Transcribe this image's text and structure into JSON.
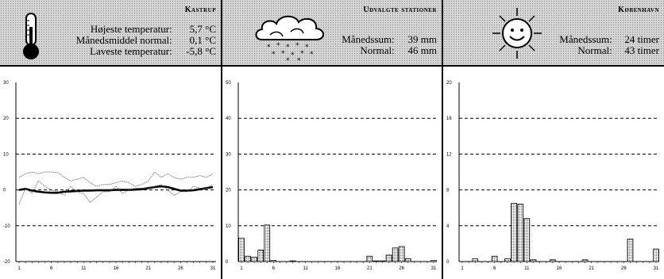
{
  "panels": {
    "temperature": {
      "place": "Kastrup",
      "icon": "thermometer-icon",
      "rows": [
        {
          "label": "Højeste temperatur:",
          "value": "5,7 °C"
        },
        {
          "label": "Månedsmiddel normal:",
          "value": "0,1 °C"
        },
        {
          "label": "Laveste temperatur:",
          "value": "-5,8 °C"
        }
      ]
    },
    "precipitation": {
      "place": "Udvalgte stationer",
      "icon": "snow-cloud-icon",
      "rows": [
        {
          "label": "Månedssum:",
          "value": "39 mm"
        },
        {
          "label": "Normal:",
          "value": "46 mm"
        }
      ]
    },
    "sunshine": {
      "place": "København",
      "icon": "sun-icon",
      "rows": [
        {
          "label": "Månedssum:",
          "value": "24 timer"
        },
        {
          "label": "Normal:",
          "value": "43 timer"
        }
      ]
    }
  },
  "chart_data": [
    {
      "type": "line",
      "x": [
        1,
        2,
        3,
        4,
        5,
        6,
        7,
        8,
        9,
        10,
        11,
        12,
        13,
        14,
        15,
        16,
        17,
        18,
        19,
        20,
        21,
        22,
        23,
        24,
        25,
        26,
        27,
        28,
        29,
        30,
        31
      ],
      "xticks": [
        "1",
        "6",
        "11",
        "16",
        "21",
        "26",
        "31"
      ],
      "ylim": [
        -20,
        30
      ],
      "yticks": [
        "30",
        "20",
        "10",
        "0",
        "-10",
        "-20"
      ],
      "grid": true,
      "series": [
        {
          "style": "thin-dotted-upper",
          "values": [
            3.5,
            4.5,
            5,
            4.5,
            5,
            5,
            4.8,
            3.5,
            2.5,
            3,
            3.5,
            2,
            1,
            1.5,
            1.5,
            2,
            2.5,
            2,
            1,
            1.5,
            2.5,
            5,
            3.5,
            4.5,
            3.5,
            3,
            3.5,
            3.5,
            4,
            3.5,
            4.5
          ]
        },
        {
          "style": "thick",
          "values": [
            0,
            0.3,
            -0.2,
            -0.5,
            -0.7,
            -0.8,
            -0.8,
            -0.5,
            -0.4,
            -0.3,
            -0.2,
            -0.2,
            -0.1,
            -0.1,
            -0.1,
            0,
            0,
            0,
            0.1,
            0.2,
            0.5,
            0.8,
            1,
            0.8,
            0.3,
            -0.2,
            -0.2,
            -0.1,
            0.2,
            0.5,
            0.8
          ]
        },
        {
          "style": "thin-dotted-lower",
          "values": [
            -4,
            0.5,
            -1,
            2.5,
            1,
            0,
            -0.5,
            -1.5,
            1,
            -0.5,
            -1,
            -3.5,
            -2,
            -0.5,
            -0.5,
            1,
            -1,
            0,
            0.5,
            0.5,
            0.5,
            1,
            1.5,
            0,
            -1.5,
            -0.5,
            -0.5,
            1,
            0.5,
            0.5,
            1.5
          ]
        }
      ]
    },
    {
      "type": "bar",
      "x": [
        1,
        2,
        3,
        4,
        5,
        6,
        7,
        8,
        9,
        10,
        11,
        12,
        13,
        14,
        15,
        16,
        17,
        18,
        19,
        20,
        21,
        22,
        23,
        24,
        25,
        26,
        27,
        28,
        29,
        30,
        31
      ],
      "values": [
        6.5,
        1.5,
        1.2,
        3.2,
        10.2,
        0.3,
        0,
        0,
        0.2,
        0,
        0,
        0,
        0,
        0,
        0,
        0,
        0,
        0,
        0,
        0,
        1.5,
        0.2,
        0.2,
        1.8,
        3.8,
        4.2,
        0.8,
        0,
        0,
        0,
        0.3
      ],
      "xticks": [
        "1",
        "6",
        "11",
        "16",
        "21",
        "26",
        "31"
      ],
      "ylim": [
        0,
        50
      ],
      "yticks": [
        "50",
        "40",
        "30",
        "20",
        "10",
        "0"
      ],
      "grid": true
    },
    {
      "type": "bar",
      "x": [
        1,
        2,
        3,
        4,
        5,
        6,
        7,
        8,
        9,
        10,
        11,
        12,
        13,
        14,
        15,
        16,
        17,
        18,
        19,
        20,
        21,
        22,
        23,
        24,
        25,
        26,
        27,
        28,
        29,
        30,
        31
      ],
      "values": [
        0,
        0,
        0.3,
        0,
        0,
        0.6,
        0,
        0.3,
        6.5,
        6.4,
        4.8,
        0.2,
        0,
        0,
        0.2,
        0,
        0,
        0,
        0,
        0.2,
        0,
        0,
        0,
        0,
        0,
        0,
        2.5,
        0,
        0,
        0,
        1.4
      ],
      "xticks": [
        "1",
        "6",
        "11",
        "16",
        "21",
        "26",
        "31"
      ],
      "ylim": [
        0,
        20
      ],
      "yticks": [
        "20",
        "16",
        "12",
        "8",
        "4",
        "0"
      ],
      "grid": true
    }
  ]
}
